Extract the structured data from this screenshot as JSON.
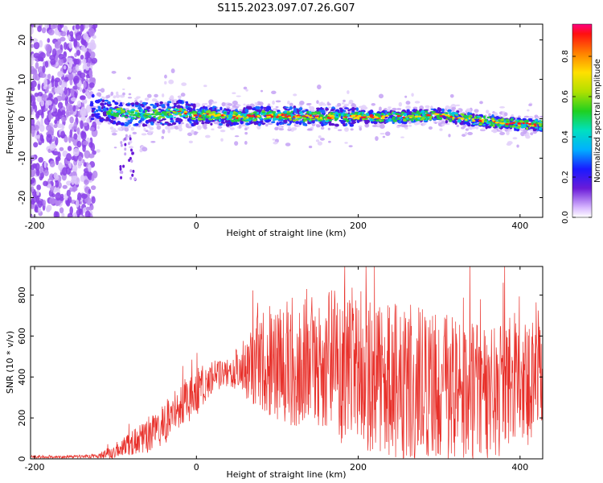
{
  "figure_title": "S115.2023.097.07.26.G07",
  "colors": {
    "snr_line": "#e8302a",
    "spectrum_ridge": "#1fa23a",
    "noise_dots": "#7a3be0"
  },
  "chart_data": [
    {
      "type": "heatmap",
      "name": "spectrogram",
      "xlabel": "Height of straight line (km)",
      "ylabel": "Frequency (Hz)",
      "xlim": [
        -205,
        428
      ],
      "ylim": [
        -25,
        24
      ],
      "x_ticks": [
        -200,
        0,
        200,
        400
      ],
      "y_ticks": [
        -20,
        -10,
        0,
        10,
        20
      ],
      "colorbar": {
        "label": "Normalized spectral amplitude",
        "range": [
          0.0,
          0.96
        ],
        "ticks": [
          0.0,
          0.2,
          0.4,
          0.6,
          0.8
        ],
        "tick_labels": [
          "0.0",
          "0.2",
          "0.4",
          "0.6",
          "0.8"
        ]
      },
      "ridge": {
        "x": [
          -130,
          -100,
          -60,
          -20,
          0,
          50,
          100,
          150,
          200,
          250,
          300,
          350,
          400,
          428
        ],
        "freq_hz": [
          3.0,
          1.5,
          1.0,
          1.5,
          1.0,
          0.5,
          0.8,
          0.5,
          0.5,
          0.5,
          1.0,
          -0.5,
          -1.5,
          -1.5
        ]
      },
      "noise_region_x": [
        -205,
        -125
      ]
    },
    {
      "type": "line",
      "name": "snr",
      "xlabel": "Height of straight line (km)",
      "ylabel": "SNR (10 * v/v)",
      "xlim": [
        -205,
        428
      ],
      "ylim": [
        0,
        940
      ],
      "x_ticks": [
        -200,
        0,
        200,
        400
      ],
      "y_ticks": [
        0,
        200,
        400,
        600,
        800
      ],
      "envelope": {
        "x": [
          -205,
          -150,
          -120,
          -100,
          -80,
          -60,
          -40,
          -20,
          0,
          20,
          40,
          60,
          80,
          100,
          120,
          140,
          160,
          180,
          200,
          220,
          240,
          260,
          280,
          300,
          320,
          340,
          360,
          380,
          400,
          410,
          420,
          428
        ],
        "mid": [
          10,
          10,
          15,
          40,
          80,
          110,
          170,
          260,
          330,
          400,
          430,
          450,
          480,
          480,
          470,
          500,
          480,
          450,
          460,
          380,
          380,
          330,
          360,
          330,
          350,
          320,
          300,
          350,
          420,
          350,
          450,
          330
        ],
        "amp": [
          8,
          8,
          12,
          40,
          60,
          80,
          100,
          120,
          120,
          80,
          70,
          150,
          250,
          300,
          330,
          300,
          350,
          380,
          400,
          360,
          380,
          420,
          420,
          380,
          350,
          350,
          330,
          330,
          300,
          300,
          350,
          250
        ]
      }
    }
  ]
}
